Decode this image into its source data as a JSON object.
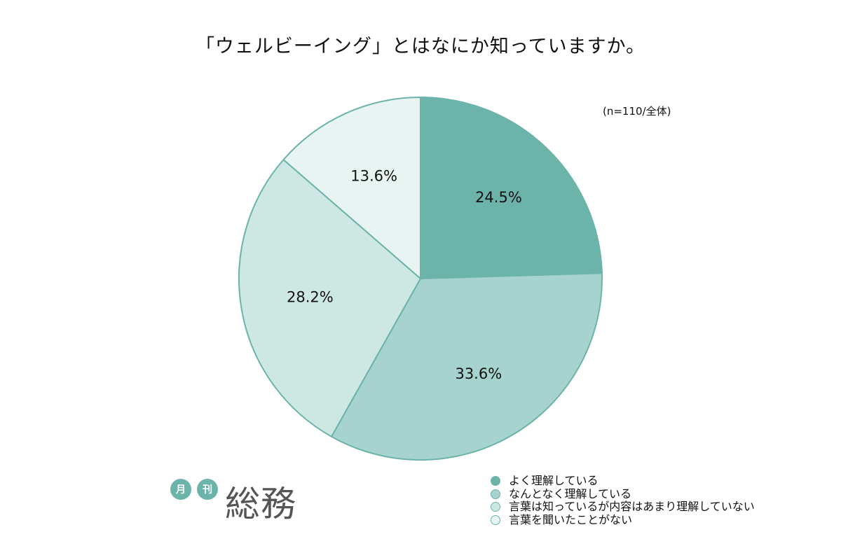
{
  "chart_data": {
    "type": "pie",
    "title": "「ウェルビーイング」とはなにか知っていますか。",
    "note": "(n=110/全体)",
    "slices": [
      {
        "name": "よく理解している",
        "value": 24.5,
        "label": "24.5%",
        "color": "#6cb3aa"
      },
      {
        "name": "なんとなく理解している",
        "value": 33.6,
        "label": "33.6%",
        "color": "#a6d3cd"
      },
      {
        "name": "言葉は知っているが内容はあまり理解していない",
        "value": 28.2,
        "label": "28.2%",
        "color": "#cde7e3"
      },
      {
        "name": "言葉を聞いたことがない",
        "value": 13.6,
        "label": "13.6%",
        "color": "#e7f4f2"
      }
    ],
    "start": "12 o'clock",
    "direction": "clockwise",
    "legend_placement": "bottom-right"
  },
  "colors": {
    "slice_border": "#6cb3aa",
    "logo_accent": "#6cb3aa"
  },
  "logo": {
    "dot1": "月",
    "dot2": "刊",
    "main": "総務"
  }
}
